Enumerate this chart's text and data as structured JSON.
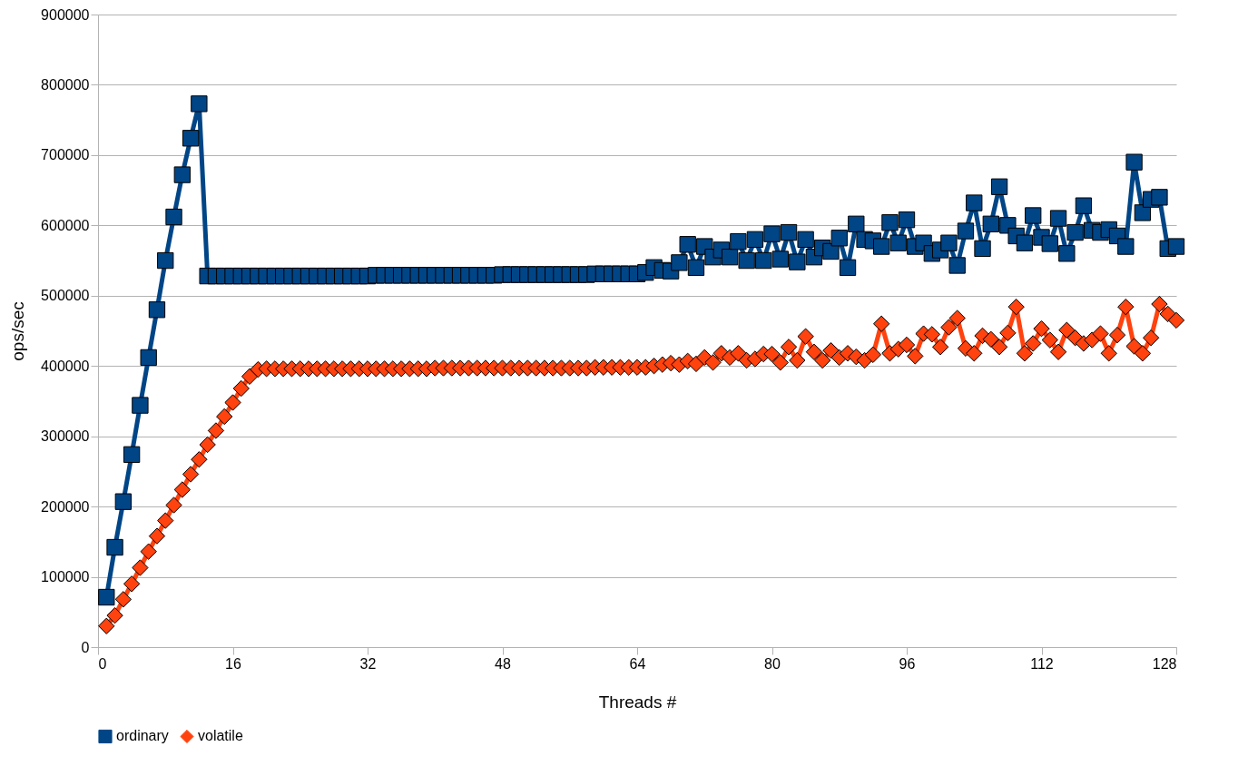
{
  "chart_data": {
    "type": "line",
    "xlabel": "Threads #",
    "ylabel": "ops/sec",
    "x": [
      1,
      2,
      3,
      4,
      5,
      6,
      7,
      8,
      9,
      10,
      11,
      12,
      13,
      14,
      15,
      16,
      17,
      18,
      19,
      20,
      21,
      22,
      23,
      24,
      25,
      26,
      27,
      28,
      29,
      30,
      31,
      32,
      33,
      34,
      35,
      36,
      37,
      38,
      39,
      40,
      41,
      42,
      43,
      44,
      45,
      46,
      47,
      48,
      49,
      50,
      51,
      52,
      53,
      54,
      55,
      56,
      57,
      58,
      59,
      60,
      61,
      62,
      63,
      64,
      65,
      66,
      67,
      68,
      69,
      70,
      71,
      72,
      73,
      74,
      75,
      76,
      77,
      78,
      79,
      80,
      81,
      82,
      83,
      84,
      85,
      86,
      87,
      88,
      89,
      90,
      91,
      92,
      93,
      94,
      95,
      96,
      97,
      98,
      99,
      100,
      101,
      102,
      103,
      104,
      105,
      106,
      107,
      108,
      109,
      110,
      111,
      112,
      113,
      114,
      115,
      116,
      117,
      118,
      119,
      120,
      121,
      122,
      123,
      124,
      125,
      126,
      127,
      128
    ],
    "xlim": [
      0,
      128
    ],
    "xticks": [
      0,
      16,
      32,
      48,
      64,
      80,
      96,
      112,
      128
    ],
    "ylim": [
      0,
      900000
    ],
    "yticks": [
      0,
      100000,
      200000,
      300000,
      400000,
      500000,
      600000,
      700000,
      800000,
      900000
    ],
    "grid": "y",
    "legend": "bottom",
    "line_style": "solid",
    "series": [
      {
        "name": "ordinary",
        "color": "#004586",
        "marker": "square",
        "values": [
          71000,
          142000,
          207000,
          274000,
          344000,
          412000,
          480000,
          550000,
          612000,
          672000,
          724000,
          773000,
          528000,
          528000,
          528000,
          528000,
          528000,
          528000,
          528000,
          528000,
          528000,
          528000,
          528000,
          528000,
          528000,
          528000,
          528000,
          528000,
          528000,
          528000,
          528000,
          528000,
          529000,
          529000,
          529000,
          529000,
          529000,
          529000,
          529000,
          529000,
          529000,
          529000,
          529000,
          529000,
          529000,
          529000,
          529000,
          530000,
          530000,
          530000,
          530000,
          530000,
          530000,
          530000,
          530000,
          530000,
          530000,
          530000,
          531000,
          531000,
          531000,
          531000,
          531000,
          531000,
          533000,
          540000,
          536000,
          535000,
          547000,
          573000,
          540000,
          570000,
          555000,
          565000,
          555000,
          577000,
          550000,
          580000,
          550000,
          588000,
          552000,
          590000,
          548000,
          580000,
          555000,
          568000,
          563000,
          582000,
          540000,
          602000,
          580000,
          578000,
          570000,
          604000,
          575000,
          608000,
          570000,
          575000,
          560000,
          565000,
          575000,
          543000,
          592000,
          632000,
          567000,
          602000,
          655000,
          600000,
          585000,
          575000,
          614000,
          583000,
          574000,
          610000,
          560000,
          590000,
          628000,
          593000,
          590000,
          594000,
          585000,
          570000,
          690000,
          618000,
          637000,
          640000,
          567000,
          570000
        ]
      },
      {
        "name": "volatile",
        "color": "#ff420e",
        "marker": "diamond",
        "values": [
          30000,
          45000,
          68000,
          90000,
          113000,
          136000,
          158000,
          180000,
          202000,
          224000,
          246000,
          267000,
          288000,
          308000,
          328000,
          348000,
          368000,
          385000,
          395000,
          396000,
          396000,
          396000,
          396000,
          396000,
          396000,
          396000,
          396000,
          396000,
          396000,
          396000,
          396000,
          396000,
          396000,
          396000,
          396000,
          396000,
          396000,
          396000,
          396000,
          397000,
          397000,
          397000,
          397000,
          397000,
          397000,
          397000,
          397000,
          397000,
          397000,
          397000,
          397000,
          397000,
          397000,
          397000,
          397000,
          397000,
          397000,
          397000,
          398000,
          398000,
          398000,
          398000,
          398000,
          398000,
          398000,
          400000,
          402000,
          404000,
          402000,
          407000,
          403000,
          412000,
          405000,
          418000,
          412000,
          418000,
          408000,
          410000,
          417000,
          417000,
          405000,
          427000,
          408000,
          442000,
          420000,
          408000,
          422000,
          412000,
          418000,
          413000,
          408000,
          416000,
          460000,
          418000,
          424000,
          430000,
          414000,
          446000,
          445000,
          427000,
          455000,
          468000,
          425000,
          418000,
          443000,
          438000,
          427000,
          447000,
          484000,
          418000,
          432000,
          453000,
          437000,
          420000,
          451000,
          440000,
          432000,
          437000,
          446000,
          418000,
          444000,
          484000,
          428000,
          418000,
          440000,
          488000,
          474000,
          465000
        ]
      }
    ]
  }
}
